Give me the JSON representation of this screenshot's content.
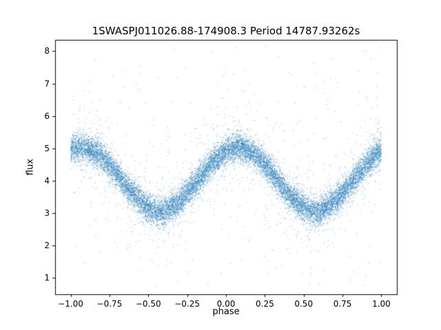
{
  "chart_data": {
    "type": "scatter",
    "title": "1SWASPJ011026.88-174908.3 Period 14787.93262s",
    "xlabel": "phase",
    "ylabel": "flux",
    "xlim": [
      -1.1,
      1.1
    ],
    "ylim": [
      0.5,
      8.35
    ],
    "xtick_values": [
      -1.0,
      -0.75,
      -0.5,
      -0.25,
      0.0,
      0.25,
      0.5,
      0.75,
      1.0
    ],
    "xtick_labels": [
      "−1.00",
      "−0.75",
      "−0.50",
      "−0.25",
      "0.00",
      "0.25",
      "0.50",
      "0.75",
      "1.00"
    ],
    "ytick_values": [
      1,
      2,
      3,
      4,
      5,
      6,
      7,
      8
    ],
    "ytick_labels": [
      "1",
      "2",
      "3",
      "4",
      "5",
      "6",
      "7",
      "8"
    ],
    "grid": false,
    "legend": "none",
    "marker_color": "#1f77b4",
    "marker_alpha": 0.45,
    "marker_size": 1.2,
    "n_points": 16000,
    "seed": 42,
    "noise": {
      "core_sigma": 0.22,
      "tail_sigma": 0.8,
      "tail_fraction": 0.065,
      "outlier_fraction": 0.015,
      "outlier_range": [
        0.7,
        8.2
      ]
    },
    "curve": [
      [
        -1.0,
        4.94
      ],
      [
        -0.925,
        5.05
      ],
      [
        -0.9,
        5.04
      ],
      [
        -0.8,
        4.76
      ],
      [
        -0.7,
        4.21
      ],
      [
        -0.6,
        3.6
      ],
      [
        -0.5,
        3.16
      ],
      [
        -0.425,
        3.05
      ],
      [
        -0.4,
        3.06
      ],
      [
        -0.3,
        3.34
      ],
      [
        -0.2,
        3.89
      ],
      [
        -0.1,
        4.5
      ],
      [
        0.0,
        4.94
      ],
      [
        0.075,
        5.05
      ],
      [
        0.1,
        5.04
      ],
      [
        0.2,
        4.76
      ],
      [
        0.3,
        4.21
      ],
      [
        0.4,
        3.6
      ],
      [
        0.5,
        3.16
      ],
      [
        0.575,
        3.05
      ],
      [
        0.6,
        3.06
      ],
      [
        0.7,
        3.34
      ],
      [
        0.8,
        3.89
      ],
      [
        0.9,
        4.5
      ],
      [
        1.0,
        4.94
      ]
    ]
  }
}
